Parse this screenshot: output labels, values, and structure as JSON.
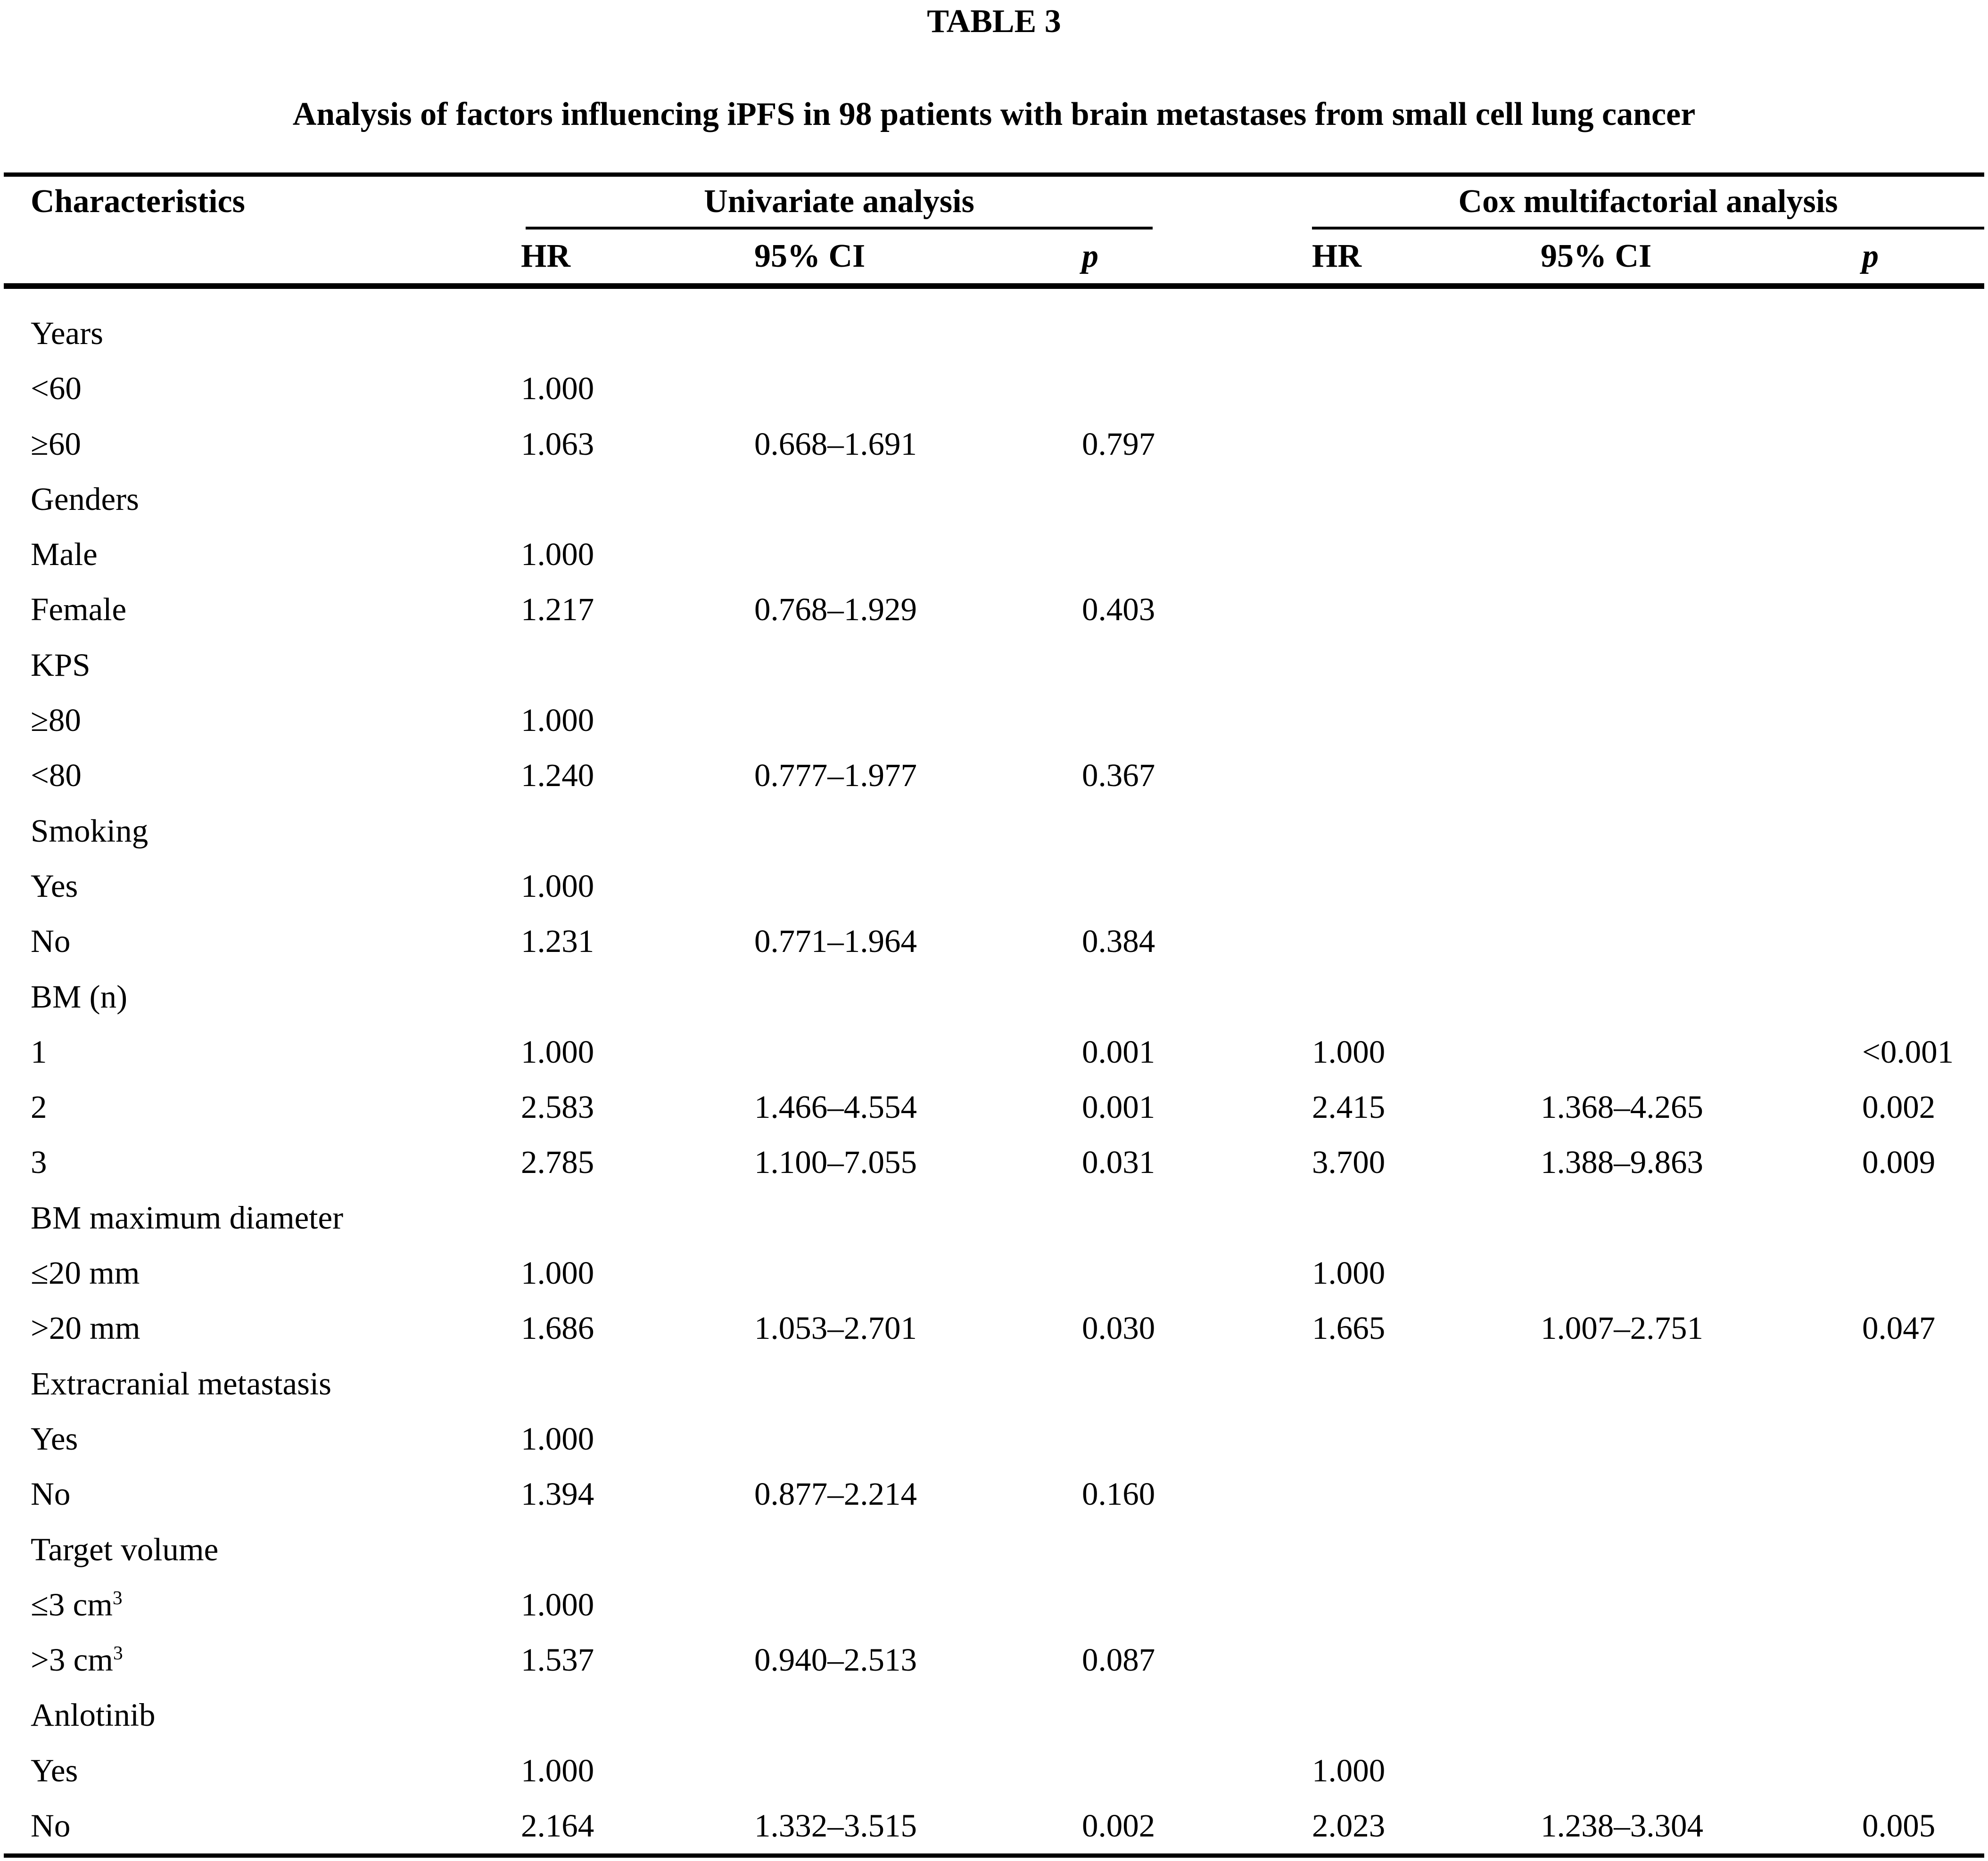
{
  "title": "TABLE 3",
  "subtitle": "Analysis of factors influencing iPFS in 98 patients with brain metastases from small cell lung cancer",
  "header": {
    "characteristics": "Characteristics",
    "group_univariate": "Univariate analysis",
    "group_cox": "Cox multifactorial analysis",
    "sub": {
      "hr": "HR",
      "ci": "95% CI",
      "p": "p"
    }
  },
  "rows": [
    {
      "label": "Years"
    },
    {
      "label": "<60",
      "u_hr": "1.000"
    },
    {
      "label": "≥60",
      "u_hr": "1.063",
      "u_ci": "0.668–1.691",
      "u_p": "0.797"
    },
    {
      "label": "Genders"
    },
    {
      "label": "Male",
      "u_hr": "1.000"
    },
    {
      "label": "Female",
      "u_hr": "1.217",
      "u_ci": "0.768–1.929",
      "u_p": "0.403"
    },
    {
      "label": "KPS"
    },
    {
      "label": "≥80",
      "u_hr": "1.000"
    },
    {
      "label": "<80",
      "u_hr": "1.240",
      "u_ci": "0.777–1.977",
      "u_p": "0.367"
    },
    {
      "label": "Smoking"
    },
    {
      "label": "Yes",
      "u_hr": "1.000"
    },
    {
      "label": "No",
      "u_hr": "1.231",
      "u_ci": "0.771–1.964",
      "u_p": "0.384"
    },
    {
      "label": "BM (n)"
    },
    {
      "label": "1",
      "u_hr": "1.000",
      "u_p": "0.001",
      "c_hr": "1.000",
      "c_p": "<0.001"
    },
    {
      "label": "2",
      "u_hr": "2.583",
      "u_ci": "1.466–4.554",
      "u_p": "0.001",
      "c_hr": "2.415",
      "c_ci": "1.368–4.265",
      "c_p": "0.002"
    },
    {
      "label": "3",
      "u_hr": "2.785",
      "u_ci": "1.100–7.055",
      "u_p": "0.031",
      "c_hr": "3.700",
      "c_ci": "1.388–9.863",
      "c_p": "0.009"
    },
    {
      "label": "BM maximum diameter"
    },
    {
      "label": "≤20 mm",
      "u_hr": "1.000",
      "c_hr": "1.000"
    },
    {
      "label": ">20 mm",
      "u_hr": "1.686",
      "u_ci": "1.053–2.701",
      "u_p": "0.030",
      "c_hr": "1.665",
      "c_ci": "1.007–2.751",
      "c_p": "0.047"
    },
    {
      "label": "Extracranial metastasis"
    },
    {
      "label": "Yes",
      "u_hr": "1.000"
    },
    {
      "label": "No",
      "u_hr": "1.394",
      "u_ci": "0.877–2.214",
      "u_p": "0.160"
    },
    {
      "label": "Target volume"
    },
    {
      "label": "≤3 cm",
      "label_sup": "3",
      "u_hr": "1.000"
    },
    {
      "label": ">3 cm",
      "label_sup": "3",
      "u_hr": "1.537",
      "u_ci": "0.940–2.513",
      "u_p": "0.087"
    },
    {
      "label": "Anlotinib"
    },
    {
      "label": "Yes",
      "u_hr": "1.000",
      "c_hr": "1.000"
    },
    {
      "label": "No",
      "u_hr": "2.164",
      "u_ci": "1.332–3.515",
      "u_p": "0.002",
      "c_hr": "2.023",
      "c_ci": "1.238–3.304",
      "c_p": "0.005"
    }
  ]
}
